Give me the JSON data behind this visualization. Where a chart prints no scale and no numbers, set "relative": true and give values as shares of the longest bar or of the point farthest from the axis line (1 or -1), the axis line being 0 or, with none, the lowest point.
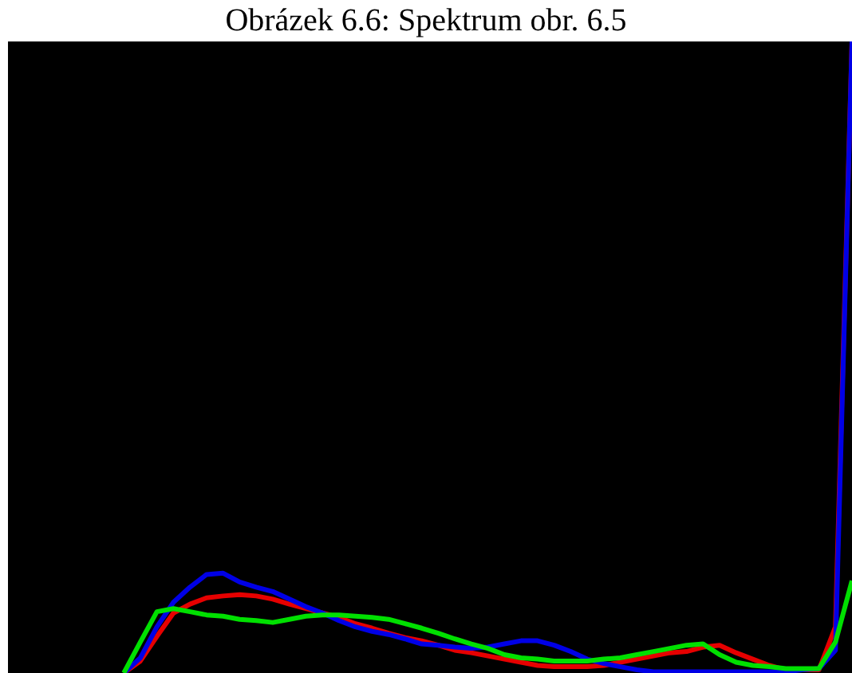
{
  "chart_data": {
    "type": "line",
    "title": "Obrázek 6.6: Spektrum obr. 6.5",
    "relative": true,
    "legend": false,
    "marker": "none",
    "line_style": "solid",
    "categories": [
      null,
      null,
      null,
      null,
      null,
      null,
      null,
      null,
      null,
      null,
      null,
      null,
      null,
      null,
      null,
      null,
      null,
      null,
      null,
      null,
      null,
      null,
      null,
      null,
      null,
      null,
      null,
      null,
      null,
      null,
      null,
      null,
      null,
      null,
      null,
      null,
      null,
      null,
      null,
      null,
      null,
      null,
      null,
      null,
      null,
      null,
      null,
      null,
      null,
      null,
      null,
      null
    ],
    "series": [
      {
        "color": "#00e000",
        "values": [
          null,
          null,
          null,
          null,
          null,
          null,
          null,
          0,
          0.049,
          0.097,
          0.102,
          0.097,
          0.092,
          0.09,
          0.085,
          0.083,
          0.08,
          0.085,
          0.09,
          0.092,
          0.092,
          0.09,
          0.088,
          0.085,
          0.078,
          0.071,
          0.063,
          0.054,
          0.046,
          0.039,
          0.029,
          0.024,
          0.022,
          0.019,
          0.019,
          0.019,
          0.022,
          0.024,
          0.029,
          0.034,
          0.039,
          0.044,
          0.046,
          0.029,
          0.017,
          0.012,
          0.01,
          0.007,
          0.007,
          0.007,
          0.049,
          0.146
        ]
      },
      {
        "color": "#0000e6",
        "values": [
          null,
          null,
          null,
          null,
          null,
          null,
          null,
          0,
          0.024,
          0.073,
          0.112,
          0.136,
          0.156,
          0.158,
          0.144,
          0.136,
          0.129,
          0.117,
          0.105,
          0.095,
          0.083,
          0.073,
          0.066,
          0.061,
          0.054,
          0.046,
          0.044,
          0.041,
          0.039,
          0.041,
          0.046,
          0.051,
          0.051,
          0.044,
          0.034,
          0.022,
          0.015,
          0.01,
          0.005,
          0.002,
          0.002,
          0.002,
          0.002,
          0.002,
          0.002,
          0.002,
          0.002,
          0.002,
          0.005,
          0.007,
          0.036,
          1
        ]
      },
      {
        "color": "#e60000",
        "values": [
          null,
          null,
          null,
          null,
          null,
          null,
          null,
          0,
          0.019,
          0.058,
          0.095,
          0.109,
          0.119,
          0.122,
          0.124,
          0.122,
          0.117,
          0.109,
          0.102,
          0.095,
          0.088,
          0.078,
          0.071,
          0.063,
          0.056,
          0.051,
          0.044,
          0.036,
          0.032,
          0.027,
          0.022,
          0.017,
          0.012,
          0.01,
          0.01,
          0.01,
          0.012,
          0.017,
          0.022,
          0.027,
          0.032,
          0.034,
          0.041,
          0.044,
          0.032,
          0.022,
          0.012,
          0.005,
          0.005,
          0.005,
          0.073,
          1
        ]
      }
    ]
  }
}
